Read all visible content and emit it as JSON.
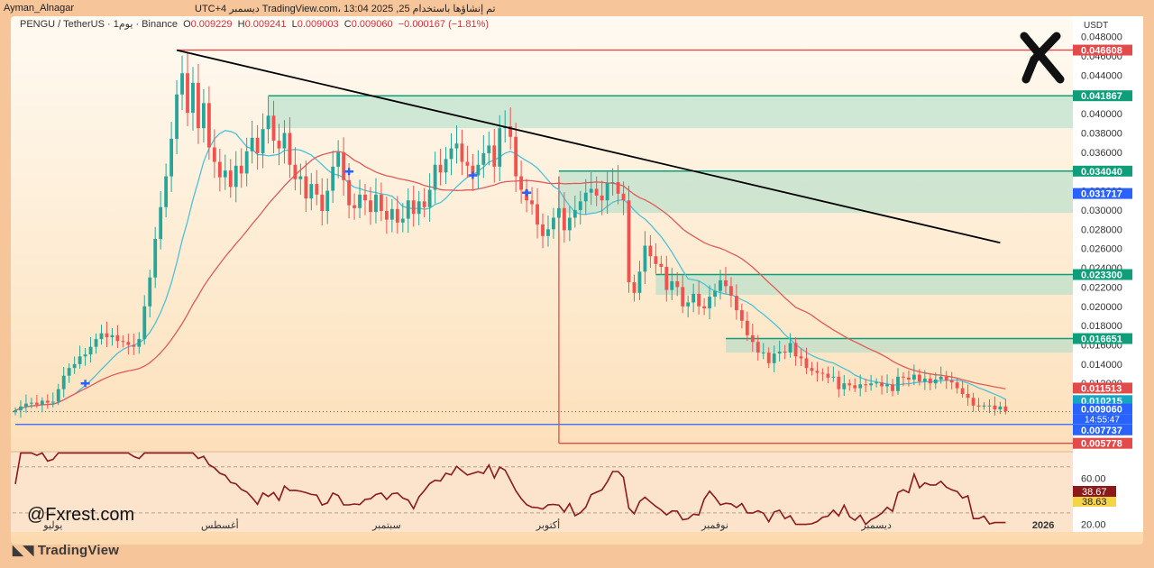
{
  "header": {
    "author": "Ayman_Alnagar",
    "published": "تم إنشاؤها باستخدام TradingView.com، 13:04 2025 ,25 ديسمبر UTC+4"
  },
  "legend": {
    "symbol": "PENGU / TetherUS · 1يوم · Binance",
    "o_label": "O",
    "o": "0.009229",
    "h_label": "H",
    "h": "0.009241",
    "l_label": "L",
    "l": "0.009003",
    "c_label": "C",
    "c": "0.009060",
    "change": "−0.000167 (−1.81%)"
  },
  "watermark": "@Fxrest.com",
  "tradingview_logo": "TradingView",
  "colors": {
    "background": "#fde0c0",
    "bull": "#26a69a",
    "bear": "#ef5350",
    "zone": "#a8dcc8",
    "trendline": "#000000",
    "ma_fast": "#4dc0d8",
    "ma_slow": "#e05a5a",
    "rsi": "#8b1a1a"
  },
  "chart_data": {
    "type": "candlestick",
    "symbol": "PENGU/USDT",
    "currency": "USDT",
    "ylim": [
      0.005,
      0.049
    ],
    "y_ticks": [
      "0.048000",
      "0.046000",
      "0.044000",
      "0.042000",
      "0.040000",
      "0.038000",
      "0.036000",
      "0.034000",
      "0.032000",
      "0.030000",
      "0.028000",
      "0.026000",
      "0.024000",
      "0.022000",
      "0.020000",
      "0.018000",
      "0.016000",
      "0.014000",
      "0.012000"
    ],
    "x_labels": [
      {
        "label": "يوليو",
        "day": 7
      },
      {
        "label": "أغسطس",
        "day": 38
      },
      {
        "label": "سبتمبر",
        "day": 69
      },
      {
        "label": "أكتوبر",
        "day": 99
      },
      {
        "label": "نوفمبر",
        "day": 130
      },
      {
        "label": "ديسمبر",
        "day": 160
      },
      {
        "label": "2026",
        "day": 191
      }
    ],
    "closes": [
      0.0092,
      0.0096,
      0.0099,
      0.01,
      0.0098,
      0.0102,
      0.01,
      0.0101,
      0.0114,
      0.0128,
      0.0136,
      0.014,
      0.0148,
      0.015,
      0.0158,
      0.0166,
      0.0172,
      0.0168,
      0.017,
      0.0164,
      0.0163,
      0.016,
      0.0158,
      0.0166,
      0.02,
      0.023,
      0.027,
      0.0303,
      0.0335,
      0.0374,
      0.042,
      0.0442,
      0.0401,
      0.0432,
      0.0385,
      0.0411,
      0.0365,
      0.035,
      0.0334,
      0.0341,
      0.0324,
      0.0346,
      0.0338,
      0.0361,
      0.0375,
      0.0359,
      0.0384,
      0.0398,
      0.0372,
      0.0364,
      0.038,
      0.0347,
      0.0332,
      0.0335,
      0.0312,
      0.0327,
      0.0316,
      0.0299,
      0.032,
      0.0345,
      0.036,
      0.0331,
      0.0305,
      0.0302,
      0.0316,
      0.031,
      0.0298,
      0.0316,
      0.0299,
      0.029,
      0.0301,
      0.0287,
      0.0291,
      0.031,
      0.0296,
      0.0309,
      0.0303,
      0.0321,
      0.0347,
      0.0339,
      0.0353,
      0.0364,
      0.0369,
      0.035,
      0.0346,
      0.0336,
      0.0347,
      0.0359,
      0.0367,
      0.0345,
      0.0385,
      0.0387,
      0.0376,
      0.0335,
      0.0321,
      0.031,
      0.0306,
      0.0285,
      0.0273,
      0.028,
      0.0292,
      0.0302,
      0.0279,
      0.0292,
      0.03,
      0.0309,
      0.0318,
      0.0322,
      0.0315,
      0.031,
      0.0328,
      0.0329,
      0.0317,
      0.031,
      0.0225,
      0.0214,
      0.0236,
      0.0263,
      0.0252,
      0.0244,
      0.0241,
      0.0217,
      0.0226,
      0.022,
      0.02,
      0.0204,
      0.0213,
      0.02,
      0.0198,
      0.021,
      0.0216,
      0.0227,
      0.0221,
      0.0211,
      0.0196,
      0.0185,
      0.017,
      0.0163,
      0.0152,
      0.0152,
      0.0141,
      0.0151,
      0.0153,
      0.0152,
      0.0162,
      0.0148,
      0.0146,
      0.0136,
      0.0133,
      0.0131,
      0.013,
      0.0126,
      0.0127,
      0.0114,
      0.012,
      0.0118,
      0.0115,
      0.0119,
      0.0118,
      0.012,
      0.0121,
      0.0117,
      0.0119,
      0.0112,
      0.0127,
      0.0126,
      0.0124,
      0.0129,
      0.0122,
      0.0125,
      0.012,
      0.0124,
      0.0127,
      0.0123,
      0.0121,
      0.0115,
      0.0109,
      0.0105,
      0.0097,
      0.0096,
      0.0097,
      0.0097,
      0.0093,
      0.0096,
      0.0091
    ],
    "levels": [
      {
        "price": 0.046608,
        "label": "0.046608",
        "color": "#e34b4b"
      },
      {
        "price": 0.041867,
        "label": "0.041867",
        "color": "#0f9e7a"
      },
      {
        "price": 0.03404,
        "label": "0.034040",
        "color": "#0f9e7a"
      },
      {
        "price": 0.031717,
        "label": "0.031717",
        "color": "#2962ff"
      },
      {
        "price": 0.0233,
        "label": "0.023300",
        "color": "#0f9e7a"
      },
      {
        "price": 0.016651,
        "label": "0.016651",
        "color": "#0f9e7a"
      },
      {
        "price": 0.011513,
        "label": "0.011513",
        "color": "#e34b4b"
      },
      {
        "price": 0.010215,
        "label": "0.010215",
        "color": "#14a7c2"
      },
      {
        "price": 0.00906,
        "label": "0.009060",
        "color": "#2962ff"
      },
      {
        "price": 0.007737,
        "label": "0.007737",
        "color": "#2962ff"
      },
      {
        "price": 0.005778,
        "label": "0.005778",
        "color": "#e34b4b"
      }
    ],
    "countdown": "14:55:47",
    "zones": [
      {
        "from_day": 47,
        "top": 0.041867,
        "bottom": 0.0385
      },
      {
        "from_day": 101,
        "top": 0.03404,
        "bottom": 0.0297
      },
      {
        "from_day": 119,
        "top": 0.0233,
        "bottom": 0.0212
      },
      {
        "from_day": 132,
        "top": 0.016651,
        "bottom": 0.0152
      }
    ],
    "trendline": {
      "from_day": 30,
      "from_price": 0.0466,
      "to_day": 183,
      "to_price": 0.0266
    },
    "markers": [
      {
        "day": 13,
        "price": 0.012
      },
      {
        "day": 62,
        "price": 0.034
      },
      {
        "day": 85,
        "price": 0.0336
      },
      {
        "day": 95,
        "price": 0.0318
      }
    ],
    "hlines": [
      {
        "price": 0.007737,
        "from_day": 0,
        "color": "#2962ff"
      },
      {
        "price": 0.005778,
        "from_day": 101,
        "color": "#e34b4b"
      },
      {
        "price": 0.046608,
        "from_day": 30,
        "color": "#e34b4b"
      }
    ],
    "rsi": {
      "ylim": [
        15,
        80
      ],
      "y_ticks": [
        "60.00",
        "20.00"
      ],
      "badge_1": "38.67",
      "badge_2": "38.63"
    }
  }
}
